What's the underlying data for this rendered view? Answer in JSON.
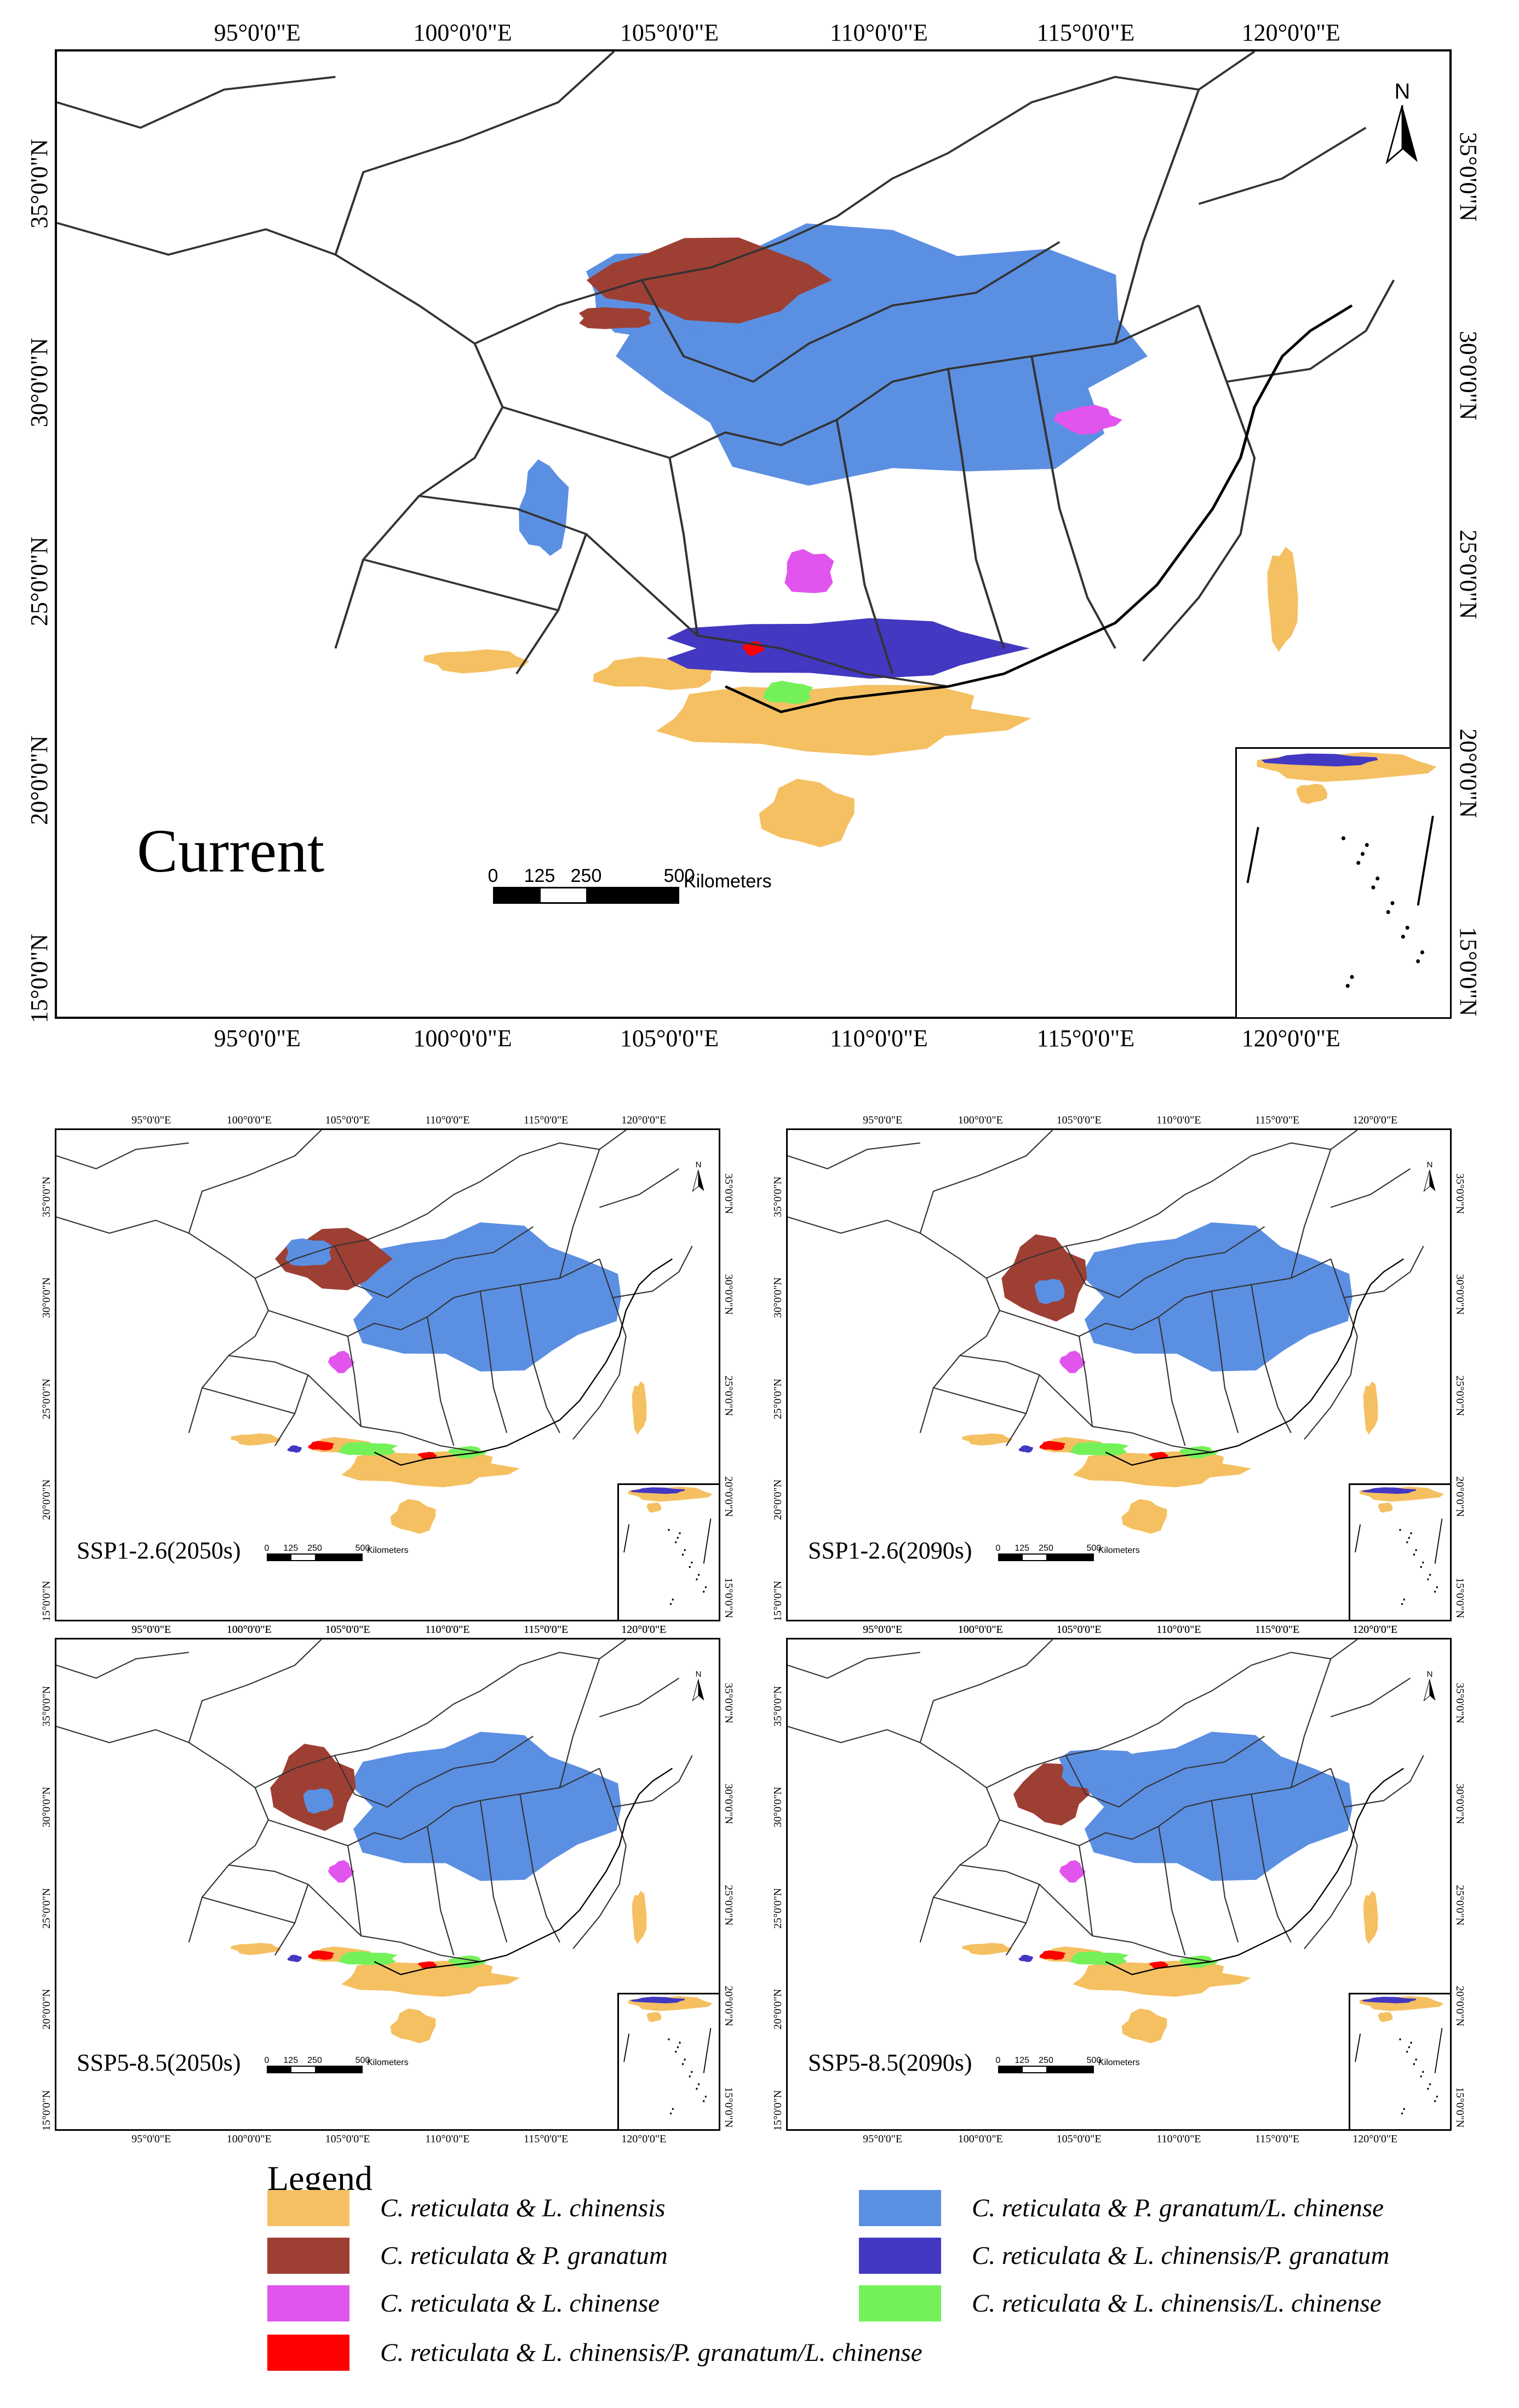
{
  "figure": {
    "colors": {
      "c_reticulata_l_chinensis": "#f5c062",
      "c_reticulata_p_granatum": "#9e3f34",
      "c_reticulata_l_chinense": "#e254ee",
      "c_reticulata_p_granatum_l_chinense": "#5b8fe2",
      "c_reticulata_l_chinensis_p_granatum": "#4338c2",
      "c_reticulata_l_chinensis_l_chinense": "#74f159",
      "c_reticulata_all": "#ff0000",
      "boundary": "#333333"
    },
    "north_arrow_label": "N",
    "scale_bar": {
      "ticks": [
        "0",
        "125",
        "250",
        "500"
      ],
      "unit": "Kilometers"
    },
    "longitude_labels": [
      "95°0'0\"E",
      "100°0'0\"E",
      "105°0'0\"E",
      "110°0'0\"E",
      "115°0'0\"E",
      "120°0'0\"E"
    ],
    "latitude_labels": [
      "35°0'0\"N",
      "30°0'0\"N",
      "25°0'0\"N",
      "20°0'0\"N",
      "15°0'0\"N"
    ]
  },
  "maps": [
    {
      "id": "current",
      "label": "Current"
    },
    {
      "id": "ssp126_2050",
      "label": "SSP1-2.6(2050s)"
    },
    {
      "id": "ssp126_2090",
      "label": "SSP1-2.6(2090s)"
    },
    {
      "id": "ssp585_2050",
      "label": "SSP5-8.5(2050s)"
    },
    {
      "id": "ssp585_2090",
      "label": "SSP5-8.5(2090s)"
    }
  ],
  "legend": {
    "title": "Legend",
    "items": [
      {
        "label": "C. reticulata & L. chinensis",
        "color": "#f5c062"
      },
      {
        "label": "C. reticulata & P. granatum/L. chinense",
        "color": "#5b8fe2"
      },
      {
        "label": "C. reticulata & P. granatum",
        "color": "#9e3f34"
      },
      {
        "label": "C. reticulata & L. chinensis/P. granatum",
        "color": "#4338c2"
      },
      {
        "label": "C. reticulata & L. chinense",
        "color": "#e254ee"
      },
      {
        "label": "C. reticulata & L. chinensis/L. chinense",
        "color": "#74f159"
      },
      {
        "label": "C. reticulata & L. chinensis/P. granatum/L. chinense",
        "color": "#ff0000"
      }
    ]
  }
}
